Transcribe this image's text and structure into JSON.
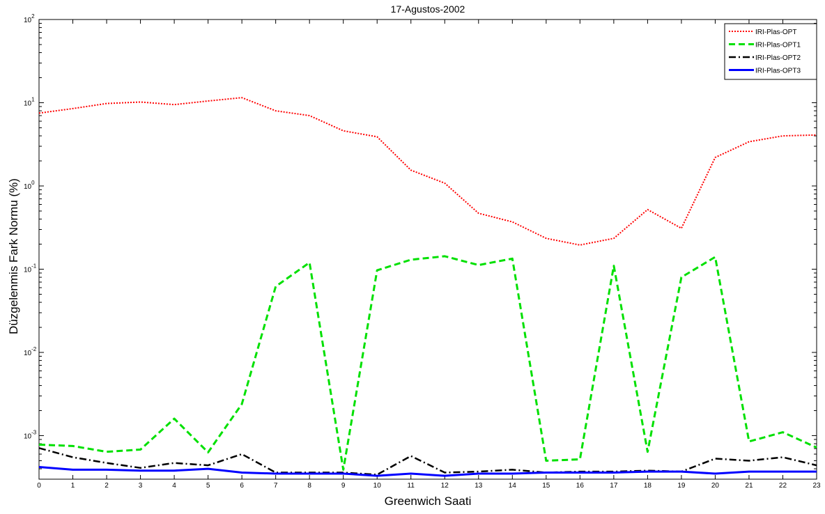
{
  "chart_data": {
    "type": "line",
    "title": "17-Agustos-2002",
    "xlabel": "Greenwich Saati",
    "ylabel": "Düzgelenmis Fark Normu (%)",
    "x": [
      0,
      1,
      2,
      3,
      4,
      5,
      6,
      7,
      8,
      9,
      10,
      11,
      12,
      13,
      14,
      15,
      16,
      17,
      18,
      19,
      20,
      21,
      22,
      23
    ],
    "xlim": [
      0,
      23
    ],
    "ylim": [
      0.0003,
      100
    ],
    "yscale": "log",
    "yticks": [
      {
        "base": "10",
        "exp": "-3",
        "value": 0.001
      },
      {
        "base": "10",
        "exp": "-2",
        "value": 0.01
      },
      {
        "base": "10",
        "exp": "-1",
        "value": 0.1
      },
      {
        "base": "10",
        "exp": "0",
        "value": 1
      },
      {
        "base": "10",
        "exp": "1",
        "value": 10
      },
      {
        "base": "10",
        "exp": "2",
        "value": 100
      }
    ],
    "xticks": [
      "0",
      "1",
      "2",
      "3",
      "4",
      "5",
      "6",
      "7",
      "8",
      "9",
      "10",
      "11",
      "12",
      "13",
      "14",
      "15",
      "16",
      "17",
      "18",
      "19",
      "20",
      "21",
      "22",
      "23"
    ],
    "grid": false,
    "legend_position": "top-right",
    "series": [
      {
        "name": "IRI-Plas-OPT",
        "color": "#ff0000",
        "style": "dotted",
        "values": [
          7.5,
          8.5,
          9.8,
          10.2,
          9.5,
          10.5,
          11.5,
          8.0,
          7.0,
          4.6,
          3.9,
          1.55,
          1.08,
          0.47,
          0.37,
          0.235,
          0.195,
          0.235,
          0.52,
          0.31,
          2.2,
          3.4,
          4.0,
          4.1
        ]
      },
      {
        "name": "IRI-Plas-OPT1",
        "color": "#00e000",
        "style": "dashed",
        "values": [
          0.00078,
          0.00075,
          0.00064,
          0.00068,
          0.0016,
          0.00063,
          0.0024,
          0.062,
          0.12,
          0.00039,
          0.097,
          0.13,
          0.143,
          0.112,
          0.134,
          0.0005,
          0.00052,
          0.11,
          0.00064,
          0.08,
          0.14,
          0.00085,
          0.0011,
          0.00072
        ]
      },
      {
        "name": "IRI-Plas-OPT2",
        "color": "#000000",
        "style": "dashdot",
        "values": [
          0.00071,
          0.00055,
          0.00047,
          0.00041,
          0.00047,
          0.00044,
          0.0006,
          0.00036,
          0.00036,
          0.00036,
          0.00034,
          0.00057,
          0.00036,
          0.00037,
          0.00039,
          0.00036,
          0.00037,
          0.00037,
          0.00038,
          0.00037,
          0.00053,
          0.0005,
          0.00055,
          0.00044
        ]
      },
      {
        "name": "IRI-Plas-OPT3",
        "color": "#0000ff",
        "style": "solid",
        "values": [
          0.00042,
          0.00039,
          0.00039,
          0.00038,
          0.00038,
          0.0004,
          0.00036,
          0.00035,
          0.00035,
          0.00035,
          0.00033,
          0.00035,
          0.00033,
          0.00035,
          0.00035,
          0.00036,
          0.00036,
          0.00036,
          0.00037,
          0.00037,
          0.00035,
          0.00037,
          0.00037,
          0.00037
        ]
      }
    ]
  }
}
